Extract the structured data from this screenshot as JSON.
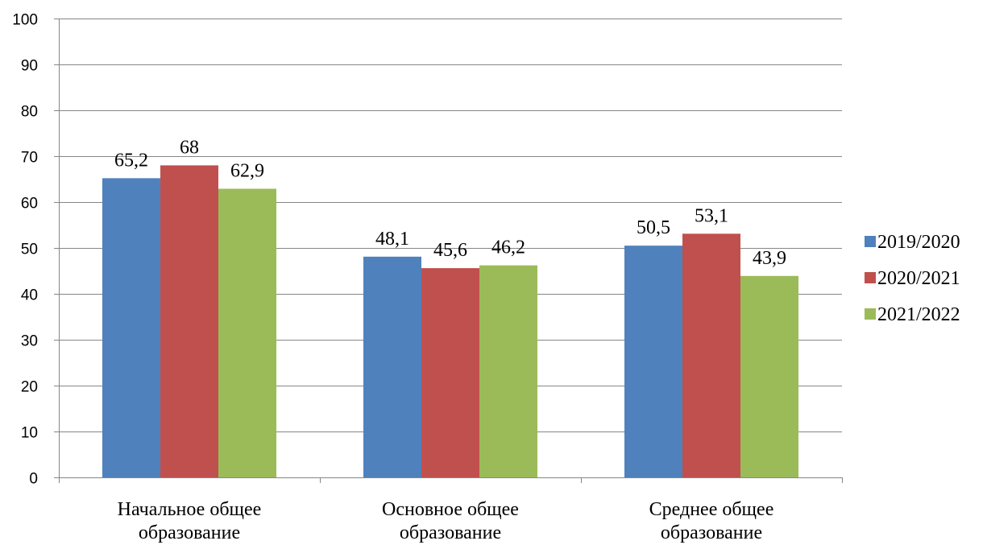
{
  "chart_data": {
    "type": "bar",
    "title": "",
    "xlabel": "",
    "ylabel": "",
    "ylim": [
      0,
      100
    ],
    "yticks": [
      0,
      10,
      20,
      30,
      40,
      50,
      60,
      70,
      80,
      90,
      100
    ],
    "grid": true,
    "legend_position": "right",
    "categories": [
      [
        "Начальное общее",
        "образование"
      ],
      [
        "Основное общее",
        "образование"
      ],
      [
        "Среднее общее",
        "образование"
      ]
    ],
    "series": [
      {
        "name": "2019/2020",
        "color": "#4F81BD",
        "values": [
          65.2,
          48.1,
          50.5
        ],
        "labels": [
          "65,2",
          "48,1",
          "50,5"
        ]
      },
      {
        "name": "2020/2021",
        "color": "#C0504D",
        "values": [
          68,
          45.6,
          53.1
        ],
        "labels": [
          "68",
          "45,6",
          "53,1"
        ]
      },
      {
        "name": "2021/2022",
        "color": "#9BBB59",
        "values": [
          62.9,
          46.2,
          43.9
        ],
        "labels": [
          "62,9",
          "46,2",
          "43,9"
        ]
      }
    ]
  }
}
